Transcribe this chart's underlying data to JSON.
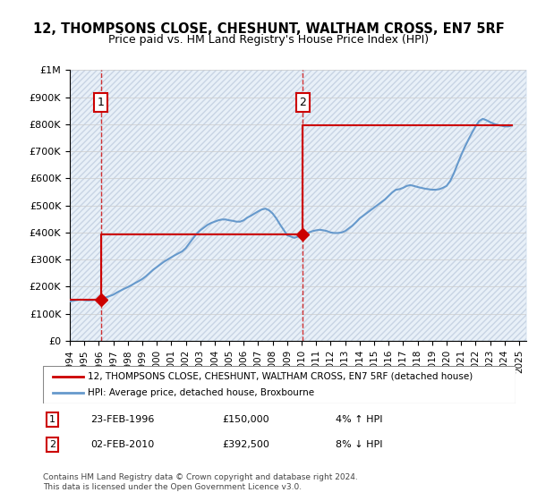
{
  "title": "12, THOMPSONS CLOSE, CHESHUNT, WALTHAM CROSS, EN7 5RF",
  "subtitle": "Price paid vs. HM Land Registry's House Price Index (HPI)",
  "ylabel": "",
  "xlabel": "",
  "ylim": [
    0,
    1000000
  ],
  "yticks": [
    0,
    100000,
    200000,
    300000,
    400000,
    500000,
    600000,
    700000,
    800000,
    900000,
    1000000
  ],
  "ytick_labels": [
    "£0",
    "£100K",
    "£200K",
    "£300K",
    "£400K",
    "£500K",
    "£600K",
    "£700K",
    "£800K",
    "£900K",
    "£1M"
  ],
  "xlim_start": 1994.0,
  "xlim_end": 2025.5,
  "xtick_years": [
    1994,
    1995,
    1996,
    1997,
    1998,
    1999,
    2000,
    2001,
    2002,
    2003,
    2004,
    2005,
    2006,
    2007,
    2008,
    2009,
    2010,
    2011,
    2012,
    2013,
    2014,
    2015,
    2016,
    2017,
    2018,
    2019,
    2020,
    2021,
    2022,
    2023,
    2024,
    2025
  ],
  "sale1_x": 1996.15,
  "sale1_y": 150000,
  "sale2_x": 2010.08,
  "sale2_y": 392500,
  "sale_color": "#cc0000",
  "hpi_color": "#6699cc",
  "vline_color": "#cc0000",
  "bg_color": "#e8f0f8",
  "hatch_color": "#d0d8e8",
  "grid_color": "#cccccc",
  "legend_line1": "12, THOMPSONS CLOSE, CHESHUNT, WALTHAM CROSS, EN7 5RF (detached house)",
  "legend_line2": "HPI: Average price, detached house, Broxbourne",
  "annotation1_label": "1",
  "annotation2_label": "2",
  "note1_num": "1",
  "note1_date": "23-FEB-1996",
  "note1_price": "£150,000",
  "note1_hpi": "4% ↑ HPI",
  "note2_num": "2",
  "note2_date": "02-FEB-2010",
  "note2_price": "£392,500",
  "note2_hpi": "8% ↓ HPI",
  "footer": "Contains HM Land Registry data © Crown copyright and database right 2024.\nThis data is licensed under the Open Government Licence v3.0.",
  "hpi_data_x": [
    1994.0,
    1994.25,
    1994.5,
    1994.75,
    1995.0,
    1995.25,
    1995.5,
    1995.75,
    1996.0,
    1996.25,
    1996.5,
    1996.75,
    1997.0,
    1997.25,
    1997.5,
    1997.75,
    1998.0,
    1998.25,
    1998.5,
    1998.75,
    1999.0,
    1999.25,
    1999.5,
    1999.75,
    2000.0,
    2000.25,
    2000.5,
    2000.75,
    2001.0,
    2001.25,
    2001.5,
    2001.75,
    2002.0,
    2002.25,
    2002.5,
    2002.75,
    2003.0,
    2003.25,
    2003.5,
    2003.75,
    2004.0,
    2004.25,
    2004.5,
    2004.75,
    2005.0,
    2005.25,
    2005.5,
    2005.75,
    2006.0,
    2006.25,
    2006.5,
    2006.75,
    2007.0,
    2007.25,
    2007.5,
    2007.75,
    2008.0,
    2008.25,
    2008.5,
    2008.75,
    2009.0,
    2009.25,
    2009.5,
    2009.75,
    2010.0,
    2010.25,
    2010.5,
    2010.75,
    2011.0,
    2011.25,
    2011.5,
    2011.75,
    2012.0,
    2012.25,
    2012.5,
    2012.75,
    2013.0,
    2013.25,
    2013.5,
    2013.75,
    2014.0,
    2014.25,
    2014.5,
    2014.75,
    2015.0,
    2015.25,
    2015.5,
    2015.75,
    2016.0,
    2016.25,
    2016.5,
    2016.75,
    2017.0,
    2017.25,
    2017.5,
    2017.75,
    2018.0,
    2018.25,
    2018.5,
    2018.75,
    2019.0,
    2019.25,
    2019.5,
    2019.75,
    2020.0,
    2020.25,
    2020.5,
    2020.75,
    2021.0,
    2021.25,
    2021.5,
    2021.75,
    2022.0,
    2022.25,
    2022.5,
    2022.75,
    2023.0,
    2023.25,
    2023.5,
    2023.75,
    2024.0,
    2024.25,
    2024.5
  ],
  "hpi_data_y": [
    145000,
    148000,
    150000,
    152000,
    150000,
    149000,
    150000,
    151000,
    152000,
    156000,
    160000,
    165000,
    170000,
    178000,
    185000,
    192000,
    198000,
    205000,
    213000,
    220000,
    228000,
    238000,
    250000,
    262000,
    272000,
    282000,
    292000,
    300000,
    308000,
    316000,
    323000,
    330000,
    342000,
    360000,
    378000,
    395000,
    408000,
    418000,
    428000,
    435000,
    440000,
    445000,
    448000,
    448000,
    445000,
    443000,
    440000,
    440000,
    445000,
    455000,
    462000,
    470000,
    478000,
    485000,
    488000,
    482000,
    470000,
    452000,
    430000,
    410000,
    390000,
    385000,
    380000,
    385000,
    390000,
    395000,
    400000,
    405000,
    408000,
    410000,
    408000,
    405000,
    400000,
    398000,
    398000,
    400000,
    405000,
    415000,
    425000,
    438000,
    452000,
    462000,
    472000,
    482000,
    492000,
    502000,
    512000,
    522000,
    535000,
    548000,
    558000,
    560000,
    565000,
    572000,
    575000,
    572000,
    568000,
    565000,
    562000,
    560000,
    558000,
    558000,
    560000,
    565000,
    572000,
    590000,
    618000,
    652000,
    685000,
    715000,
    742000,
    768000,
    792000,
    812000,
    820000,
    815000,
    808000,
    802000,
    798000,
    795000,
    792000,
    792000,
    795000
  ],
  "sold_line_x": [
    1994.0,
    1996.15,
    1996.15,
    2010.08,
    2010.08,
    2024.5
  ],
  "sold_line_y": [
    150000,
    150000,
    392500,
    392500,
    795000,
    795000
  ]
}
